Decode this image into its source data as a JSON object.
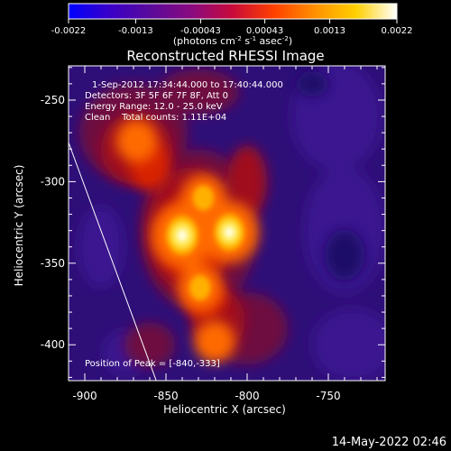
{
  "chart_data": {
    "type": "heatmap",
    "title": "Reconstructed RHESSI Image",
    "colorbar": {
      "ticks": [
        "-0.0022",
        "-0.0013",
        "-0.00043",
        "0.00043",
        "0.0013",
        "0.0022"
      ],
      "tick_values": [
        -0.0022,
        -0.0013,
        -0.00043,
        0.00043,
        0.0013,
        0.0022
      ],
      "range": [
        -0.0022,
        0.0022
      ],
      "unit_label": "(photons cm",
      "unit_exp1": "-2",
      "unit_mid": " s",
      "unit_exp2": "-1",
      "unit_tail": " asec",
      "unit_exp3": "-2",
      "unit_close": ")",
      "colormap": [
        "#0000ff",
        "#3a00c8",
        "#5a0a9a",
        "#8a0a80",
        "#c80a3a",
        "#ff4000",
        "#ff9000",
        "#ffd000",
        "#ffffff"
      ]
    },
    "info_lines": [
      "1-Sep-2012 17:34:44.000 to 17:40:44.000",
      "Detectors: 3F 5F 6F 7F 8F, Att 0",
      "Energy Range: 12.0 - 25.0 keV",
      "Clean    Total counts: 1.11E+04"
    ],
    "peak_label": "Position of Peak = [-840,-333]",
    "peak": [
      -840,
      -333
    ],
    "xlabel": "Heliocentric X (arcsec)",
    "ylabel": "Heliocentric Y (arcsec)",
    "xlim": [
      -910,
      -715
    ],
    "ylim": [
      -422,
      -229
    ],
    "xticks": [
      -900,
      -850,
      -800,
      -750
    ],
    "yticks": [
      -250,
      -300,
      -350,
      -400
    ],
    "xtick_labels": [
      "-900",
      "-850",
      "-800",
      "-750"
    ],
    "ytick_labels": [
      "-250",
      "-300",
      "-350",
      "-400"
    ],
    "limb_line": [
      [
        -910,
        -276
      ],
      [
        -856,
        -422
      ]
    ],
    "sources": [
      {
        "x": -840,
        "y": -333,
        "level": 1.0
      },
      {
        "x": -811,
        "y": -331,
        "level": 0.92
      },
      {
        "x": -827,
        "y": -310,
        "level": 0.55
      },
      {
        "x": -829,
        "y": -365,
        "level": 0.55
      },
      {
        "x": -868,
        "y": -275,
        "level": 0.45
      },
      {
        "x": -820,
        "y": -398,
        "level": 0.42
      }
    ],
    "grid": false
  },
  "footer": {
    "timestamp": "14-May-2022 02:46"
  }
}
